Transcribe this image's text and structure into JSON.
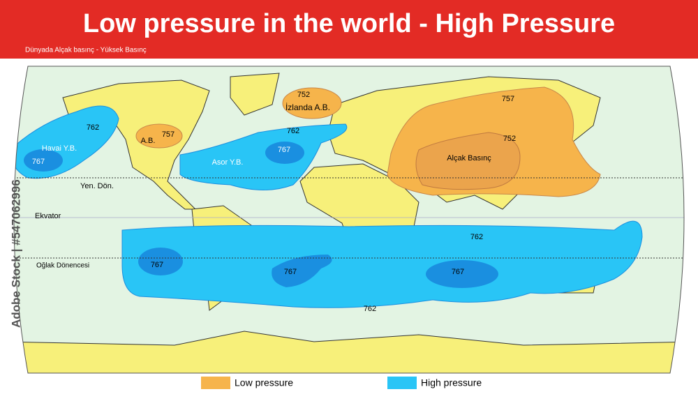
{
  "header": {
    "title": "Low pressure in the world - High Pressure",
    "subtitle": "Dünyada Alçak basınç - Yüksek Basınç"
  },
  "watermark": "Adobe Stock | #547062996",
  "map": {
    "lines": [
      "Yen. Dön.",
      "Ekvator",
      "Oğlak Dönencesi"
    ],
    "labels": [
      "762",
      "Havai Y.B.",
      "767",
      "757",
      "A.B.",
      "752",
      "İzlanda A.B.",
      "762",
      "Asor Y.B.",
      "767",
      "757",
      "752",
      "Alçak Basınç",
      "762",
      "767",
      "767",
      "767",
      "762"
    ]
  },
  "legend": [
    "Low pressure",
    "High pressure"
  ]
}
